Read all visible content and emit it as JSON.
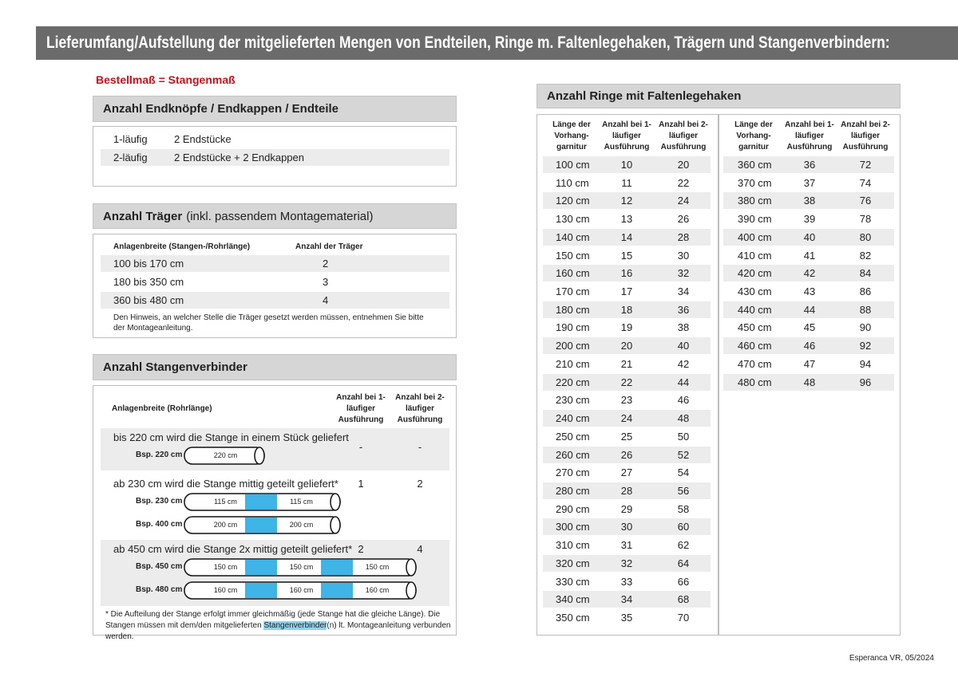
{
  "header": {
    "title": "Lieferumfang/Aufstellung der mitgelieferten Mengen von Endteilen, Ringe m. Faltenlegehaken, Trägern und Stangenverbindern:"
  },
  "order_note": "Bestellmaß = Stangenmaß",
  "endteile": {
    "title": "Anzahl Endknöpfe / Endkappen / Endteile",
    "rows": [
      [
        "1-läufig",
        "2 Endstücke"
      ],
      [
        "2-läufig",
        "2 Endstücke + 2 Endkappen"
      ]
    ]
  },
  "traeger": {
    "title": "Anzahl Träger",
    "title_note": "(inkl. passendem Montagematerial)",
    "columns": [
      "Anlagenbreite (Stangen-/Rohrlänge)",
      "Anzahl der Träger"
    ],
    "rows": [
      [
        "100 bis 170 cm",
        2
      ],
      [
        "180 bis 350 cm",
        3
      ],
      [
        "360 bis 480 cm",
        4
      ]
    ],
    "note": "Den Hinweis, an welcher Stelle die Träger gesetzt werden müssen, entnehmen Sie bitte der Montageanleitung."
  },
  "verbinder": {
    "title": "Anzahl Stangenverbinder",
    "columns": [
      "Anlagenbreite (Rohrlänge)",
      "Anzahl bei 1-läufiger Ausführung",
      "Anzahl bei 2-läufiger Ausführung"
    ],
    "groups": [
      {
        "text": "bis 220 cm wird die Stange in einem Stück geliefert",
        "single": "-",
        "double": "-",
        "examples": [
          {
            "label": "Bsp. 220 cm",
            "segments": [
              "220 cm"
            ]
          }
        ]
      },
      {
        "text": "ab 230 cm wird die Stange mittig geteilt geliefert*",
        "single": 1,
        "double": 2,
        "examples": [
          {
            "label": "Bsp. 230 cm",
            "segments": [
              "115 cm",
              "115 cm"
            ]
          },
          {
            "label": "Bsp. 400 cm",
            "segments": [
              "200 cm",
              "200 cm"
            ]
          }
        ]
      },
      {
        "text": "ab 450 cm wird die Stange 2x mittig geteilt geliefert*",
        "single": 2,
        "double": 4,
        "examples": [
          {
            "label": "Bsp. 450 cm",
            "segments": [
              "150 cm",
              "150 cm",
              "150 cm"
            ]
          },
          {
            "label": "Bsp. 480 cm",
            "segments": [
              "160 cm",
              "160 cm",
              "160 cm"
            ]
          }
        ]
      }
    ],
    "footnote": {
      "before": "* Die Aufteilung der Stange erfolgt immer gleichmäßig (jede Stange hat die gleiche Länge). Die Stangen müssen mit dem/den mitgelieferten ",
      "highlight": "Stangenverbinder",
      "after": "(n) lt. Montageanleitung verbunden werden."
    }
  },
  "ringe": {
    "title": "Anzahl Ringe mit Faltenlegehaken",
    "columns": [
      "Länge der Vorhang-garnitur",
      "Anzahl bei 1-läufiger Ausführung",
      "Anzahl bei 2-läufiger Ausführung"
    ],
    "tables": [
      [
        [
          "100 cm",
          10,
          20
        ],
        [
          "110 cm",
          11,
          22
        ],
        [
          "120 cm",
          12,
          24
        ],
        [
          "130 cm",
          13,
          26
        ],
        [
          "140 cm",
          14,
          28
        ],
        [
          "150 cm",
          15,
          30
        ],
        [
          "160 cm",
          16,
          32
        ],
        [
          "170 cm",
          17,
          34
        ],
        [
          "180 cm",
          18,
          36
        ],
        [
          "190 cm",
          19,
          38
        ],
        [
          "200 cm",
          20,
          40
        ],
        [
          "210 cm",
          21,
          42
        ],
        [
          "220 cm",
          22,
          44
        ],
        [
          "230 cm",
          23,
          46
        ],
        [
          "240 cm",
          24,
          48
        ],
        [
          "250 cm",
          25,
          50
        ],
        [
          "260 cm",
          26,
          52
        ],
        [
          "270 cm",
          27,
          54
        ],
        [
          "280 cm",
          28,
          56
        ],
        [
          "290 cm",
          29,
          58
        ],
        [
          "300 cm",
          30,
          60
        ],
        [
          "310 cm",
          31,
          62
        ],
        [
          "320 cm",
          32,
          64
        ],
        [
          "330 cm",
          33,
          66
        ],
        [
          "340 cm",
          34,
          68
        ],
        [
          "350 cm",
          35,
          70
        ]
      ],
      [
        [
          "360 cm",
          36,
          72
        ],
        [
          "370 cm",
          37,
          74
        ],
        [
          "380 cm",
          38,
          76
        ],
        [
          "390 cm",
          39,
          78
        ],
        [
          "400 cm",
          40,
          80
        ],
        [
          "410 cm",
          41,
          82
        ],
        [
          "420 cm",
          42,
          84
        ],
        [
          "430 cm",
          43,
          86
        ],
        [
          "440 cm",
          44,
          88
        ],
        [
          "450 cm",
          45,
          90
        ],
        [
          "460 cm",
          46,
          92
        ],
        [
          "470 cm",
          47,
          94
        ],
        [
          "480 cm",
          48,
          96
        ]
      ]
    ]
  },
  "footer": "Esperanca VR, 05/2024"
}
